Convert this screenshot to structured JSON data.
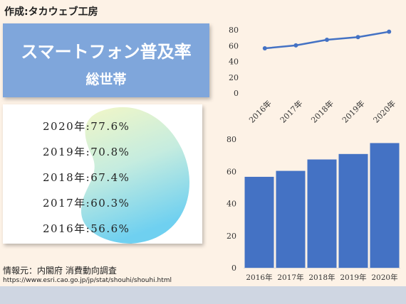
{
  "credit": "作成:タカウェブ工房",
  "title": {
    "main": "スマートフォン普及率",
    "sub": "総世帯"
  },
  "rows": [
    {
      "text": "2020年:77.6%"
    },
    {
      "text": "2019年:70.8%"
    },
    {
      "text": "2018年:67.4%"
    },
    {
      "text": "2017年:60.3%"
    },
    {
      "text": "2016年:56.6%"
    }
  ],
  "source": {
    "label": "情報元：内閣府 消費動向調査",
    "url": "https://www.esri.cao.go.jp/jp/stat/shouhi/shouhi.html"
  },
  "colors": {
    "line": "#4472c4",
    "bar": "#4472c4",
    "title_bg": "#7fa6db",
    "page_bg": "#fdf2e6"
  },
  "chart_data": [
    {
      "type": "line",
      "categories": [
        "2016年",
        "2017年",
        "2018年",
        "2019年",
        "2020年"
      ],
      "values": [
        56.6,
        60.3,
        67.4,
        70.8,
        77.6
      ],
      "ylim": [
        0,
        80
      ],
      "yticks": [
        0,
        20,
        40,
        60,
        80
      ],
      "grid": false,
      "xtick_rotation": "rotated"
    },
    {
      "type": "bar",
      "categories": [
        "2016年",
        "2017年",
        "2018年",
        "2019年",
        "2020年"
      ],
      "values": [
        56.6,
        60.3,
        67.4,
        70.8,
        77.6
      ],
      "ylim": [
        0,
        80
      ],
      "yticks": [
        0,
        20,
        40,
        60,
        80
      ],
      "grid": false
    }
  ]
}
